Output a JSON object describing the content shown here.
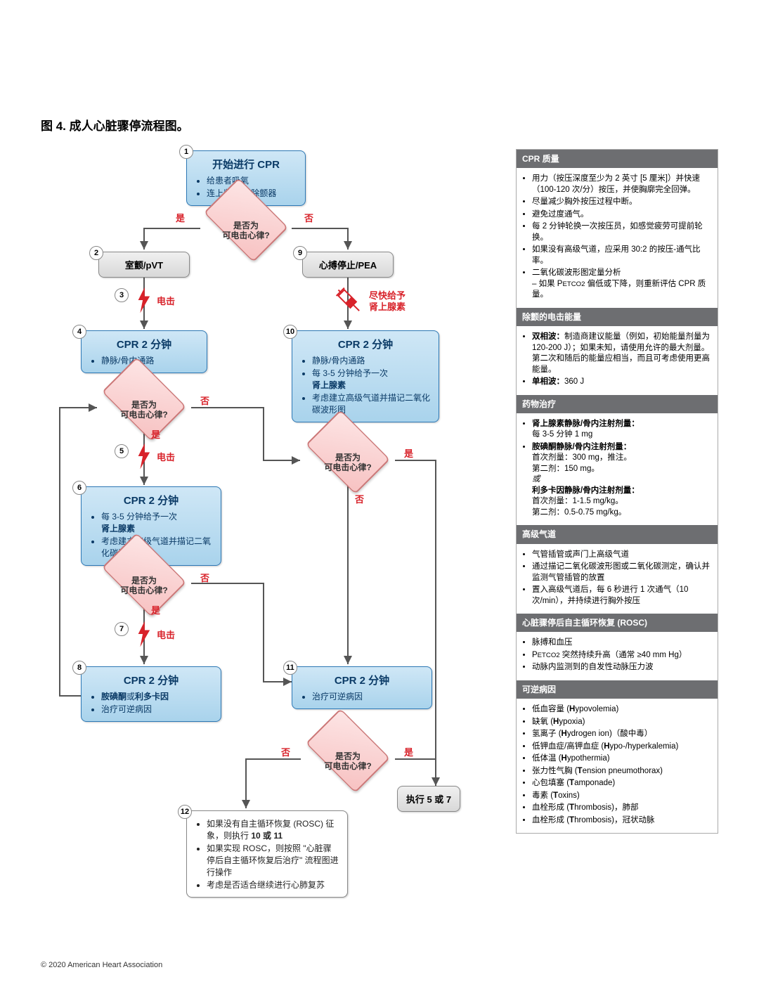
{
  "title": "图 4. 成人心脏骤停流程图。",
  "copyright": "© 2020 American Heart Association",
  "colors": {
    "red": "#d8222a",
    "blueBoxBorder": "#2d78b5",
    "sideHeaderBg": "#6d6e71"
  },
  "labels": {
    "yes": "是",
    "no": "否",
    "shock": "电击",
    "epi_now_1": "尽快给予",
    "epi_now_2": "肾上腺素",
    "exec57": "执行 5 或 7"
  },
  "nodes": {
    "n1": {
      "num": "1",
      "title": "开始进行 CPR",
      "bullets": [
        "给患者吸氧",
        "连上监护仪/除颤器"
      ]
    },
    "d1": {
      "label": "是否为\n可电击心律?"
    },
    "n2": {
      "num": "2",
      "label": "室颤/pVT"
    },
    "n9": {
      "num": "9",
      "label": "心搏停止/PEA"
    },
    "n3": {
      "num": "3"
    },
    "n4": {
      "num": "4",
      "title": "CPR 2 分钟",
      "bullets": [
        "静脉/骨内通路"
      ]
    },
    "d2": {
      "label": "是否为\n可电击心律?"
    },
    "n5": {
      "num": "5"
    },
    "n6": {
      "num": "6",
      "title": "CPR 2 分钟",
      "bullets_html": [
        "每 3-5 分钟给予一次<br><b>肾上腺素</b>",
        "考虑建立高级气道并描记二氧化碳波形图"
      ]
    },
    "d3": {
      "label": "是否为\n可电击心律?"
    },
    "n7": {
      "num": "7"
    },
    "n8": {
      "num": "8",
      "title": "CPR 2 分钟",
      "bullets_html": [
        "<b>胺碘酮</b>或<b>利多卡因</b>",
        "治疗可逆病因"
      ]
    },
    "n10": {
      "num": "10",
      "title": "CPR 2 分钟",
      "bullets_html": [
        "静脉/骨内通路",
        "每 3-5 分钟给予一次<br><b>肾上腺素</b>",
        "考虑建立高级气道并描记二氧化碳波形图"
      ]
    },
    "d4": {
      "label": "是否为\n可电击心律?"
    },
    "n11": {
      "num": "11",
      "title": "CPR 2 分钟",
      "bullets": [
        "治疗可逆病因"
      ]
    },
    "d5": {
      "label": "是否为\n可电击心律?"
    },
    "n12": {
      "num": "12",
      "bullets_html": [
        "如果没有自主循环恢复 (ROSC) 征象，则执行 <b>10 或 11</b>",
        "如果实现 ROSC，则按照 \"心脏骤停后自主循环恢复后治疗\" 流程图进行操作",
        "考虑是否适合继续进行心肺复苏"
      ]
    }
  },
  "sidebar": [
    {
      "head": "CPR 质量",
      "items_html": [
        "用力（按压深度至少为 2 英寸 [5 厘米]）并快速（100-120 次/分）按压，并使胸廓完全回弹。",
        "尽量减少胸外按压过程中断。",
        "避免过度通气。",
        "每 2 分钟轮换一次按压员，如感觉疲劳可提前轮换。",
        "如果没有高级气道，应采用 30:2 的按压-通气比率。",
        "二氧化碳波形图定量分析<br>– 如果 P<small>ETCO2</small> 偏低或下降，则重新评估 CPR 质量。"
      ]
    },
    {
      "head": "除颤的电击能量",
      "items_html": [
        "<b>双相波：</b>制造商建议能量（例如，初始能量剂量为 120-200 J）；如果未知，请使用允许的最大剂量。第二次和随后的能量应相当，而且可考虑使用更高能量。",
        "<b>单相波：</b>360 J"
      ]
    },
    {
      "head": "药物治疗",
      "items_html": [
        "<b>肾上腺素静脉/骨内注射剂量：</b><br>每 3-5 分钟 1 mg",
        "<b>胺碘酮静脉/骨内注射剂量：</b><br>首次剂量：300 mg，推注。<br>第二剂：150 mg。<br><i>或</i><br><b>利多卡因静脉/骨内注射剂量：</b><br>首次剂量：1-1.5 mg/kg。<br>第二剂：0.5-0.75 mg/kg。"
      ]
    },
    {
      "head": "高级气道",
      "items_html": [
        "气管插管或声门上高级气道",
        "通过描记二氧化碳波形图或二氧化碳测定，确认并监测气管插管的放置",
        "置入高级气道后，每 6 秒进行 1 次通气（10 次/min），并持续进行胸外按压"
      ]
    },
    {
      "head": "心脏骤停后自主循环恢复 (ROSC)",
      "items_html": [
        "脉搏和血压",
        "P<small>ETCO2</small> 突然持续升高（通常 ≥40 mm Hg）",
        "动脉内监测到的自发性动脉压力波"
      ]
    },
    {
      "head": "可逆病因",
      "items_html": [
        "低血容量 (<b>H</b>ypovolemia)",
        "缺氧 (<b>H</b>ypoxia)",
        "氢离子 (<b>H</b>ydrogen ion)（酸中毒）",
        "低钾血症/高钾血症 (<b>H</b>ypo-/hyperkalemia)",
        "低体温 (<b>H</b>ypothermia)",
        "张力性气胸 (<b>T</b>ension pneumothorax)",
        "心包填塞 (<b>T</b>amponade)",
        "毒素 (<b>T</b>oxins)",
        "血栓形成 (<b>T</b>hrombosis)，肺部",
        "血栓形成 (<b>T</b>hrombosis)，冠状动脉"
      ]
    }
  ]
}
